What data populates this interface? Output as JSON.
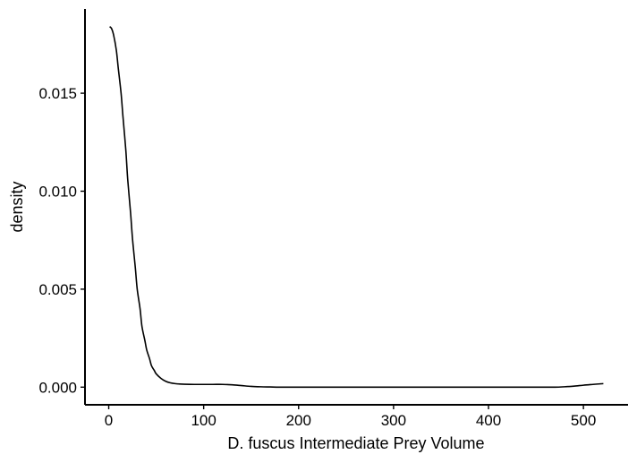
{
  "chart_data": {
    "type": "line",
    "title": "",
    "xlabel": "D. fuscus Intermediate Prey Volume",
    "ylabel": "density",
    "xlim": [
      -25,
      547
    ],
    "ylim": [
      -0.0009,
      0.0193
    ],
    "x_ticks": [
      0,
      100,
      200,
      300,
      400,
      500
    ],
    "x_tick_labels": [
      "0",
      "100",
      "200",
      "300",
      "400",
      "500"
    ],
    "y_ticks": [
      0.0,
      0.005,
      0.01,
      0.015
    ],
    "y_tick_labels": [
      "0.000",
      "0.005",
      "0.010",
      "0.015"
    ],
    "grid": false,
    "legend": "none",
    "series": [
      {
        "color": "#000000",
        "x": [
          1,
          3,
          5,
          8,
          10,
          13,
          15,
          18,
          20,
          23,
          25,
          28,
          30,
          33,
          35,
          38,
          40,
          43,
          45,
          48,
          50,
          55,
          60,
          65,
          70,
          75,
          80,
          90,
          100,
          110,
          120,
          130,
          140,
          150,
          160,
          170,
          180,
          200,
          250,
          300,
          350,
          400,
          450,
          470,
          480,
          490,
          500,
          510,
          521
        ],
        "y": [
          0.0184,
          0.0183,
          0.018,
          0.0172,
          0.0163,
          0.015,
          0.0138,
          0.0121,
          0.0106,
          0.0089,
          0.0076,
          0.0061,
          0.005,
          0.004,
          0.0031,
          0.0024,
          0.0019,
          0.00145,
          0.0011,
          0.00085,
          0.00068,
          0.00045,
          0.0003,
          0.00022,
          0.00018,
          0.00016,
          0.00015,
          0.00014,
          0.00014,
          0.00014,
          0.00014,
          0.00012,
          8e-05,
          4e-05,
          2e-05,
          1e-05,
          0.0,
          0.0,
          0.0,
          0.0,
          0.0,
          0.0,
          0.0,
          0.0,
          2e-05,
          5e-05,
          0.0001,
          0.00014,
          0.00018
        ]
      }
    ]
  }
}
